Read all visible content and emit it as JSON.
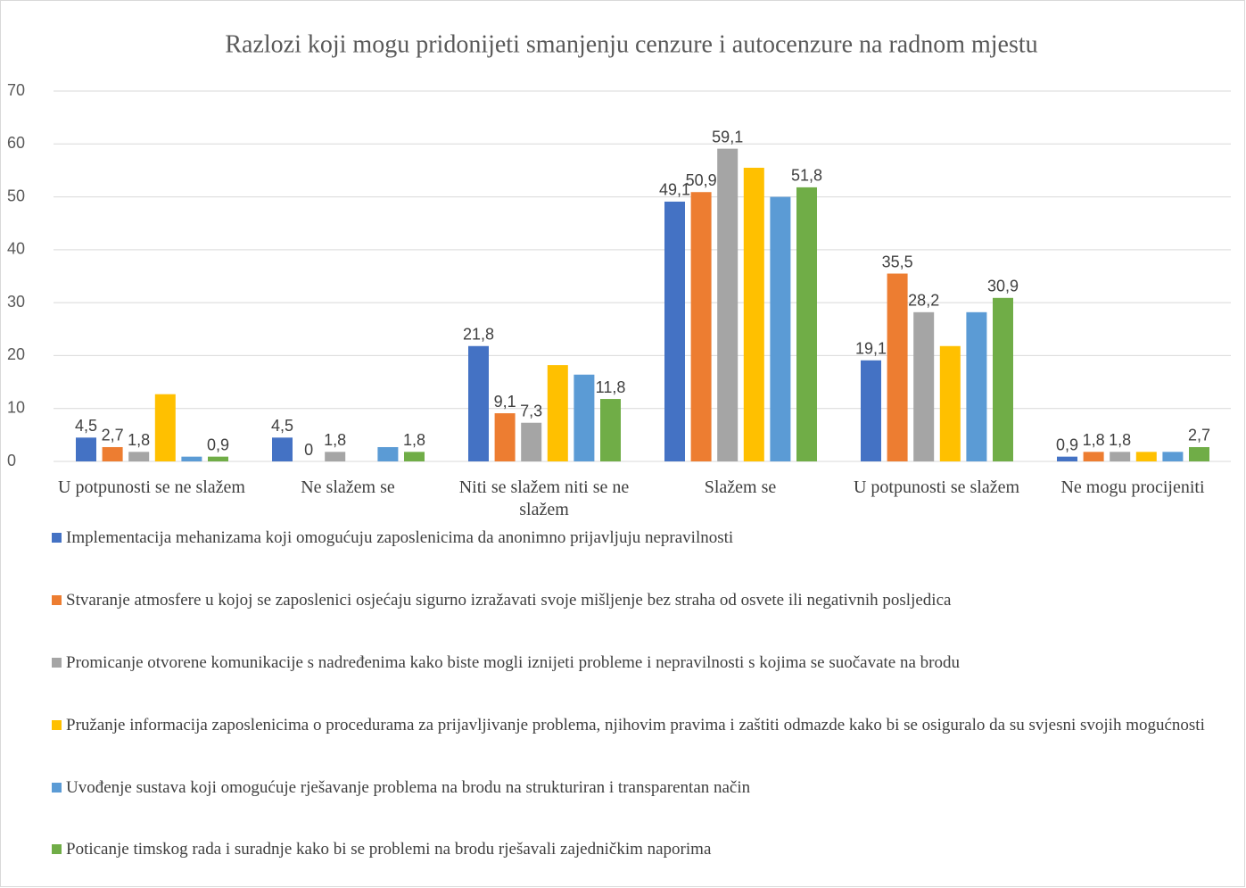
{
  "chart_data": {
    "type": "bar",
    "title": "Razlozi koji mogu pridonijeti smanjenju cenzure i autocenzure na radnom mjestu",
    "categories": [
      "U potpunosti se ne slažem",
      "Ne slažem se",
      "Niti se slažem niti se ne slažem",
      "Slažem se",
      "U potpunosti se slažem",
      "Ne mogu procijeniti"
    ],
    "series": [
      {
        "name": "Implementacija mehanizama koji omogućuju zaposlenicima da anonimno prijavljuju nepravilnosti",
        "color": "#4472c4",
        "values": [
          4.5,
          4.5,
          21.8,
          49.1,
          19.1,
          0.9
        ],
        "value_labels": [
          "4,5",
          "4,5",
          "21,8",
          "49,1",
          "19,1",
          "0,9"
        ]
      },
      {
        "name": "Stvaranje atmosfere u kojoj se zaposlenici osjećaju sigurno izražavati svoje mišljenje bez straha od osvete ili negativnih posljedica",
        "color": "#ed7d31",
        "values": [
          2.7,
          0,
          9.1,
          50.9,
          35.5,
          1.8
        ],
        "value_labels": [
          "2,7",
          "0",
          "9,1",
          "50,9",
          "35,5",
          "1,8"
        ]
      },
      {
        "name": "Promicanje otvorene komunikacije s nadređenima kako biste mogli iznijeti probleme i nepravilnosti s kojima se suočavate na brodu",
        "color": "#a5a5a5",
        "values": [
          1.8,
          1.8,
          7.3,
          59.1,
          28.2,
          1.8
        ],
        "value_labels": [
          "1,8",
          "1,8",
          "7,3",
          "59,1",
          "28,2",
          "1,8"
        ]
      },
      {
        "name": "Pružanje informacija zaposlenicima o procedurama za prijavljivanje problema, njihovim pravima i zaštiti odmazde kako bi se osiguralo da su svjesni svojih mogućnosti",
        "color": "#ffc000",
        "values": [
          12.7,
          0,
          18.2,
          55.5,
          21.8,
          1.8
        ]
      },
      {
        "name": "Uvođenje sustava koji omogućuje rješavanje problema na brodu na strukturiran i transparentan način",
        "color": "#5b9bd5",
        "values": [
          0.9,
          2.7,
          16.4,
          50.0,
          28.2,
          1.8
        ]
      },
      {
        "name": "Poticanje timskog rada i suradnje kako bi se problemi na brodu rješavali zajedničkim naporima",
        "color": "#70ad47",
        "values": [
          0.9,
          1.8,
          11.8,
          51.8,
          30.9,
          2.7
        ],
        "value_labels": [
          "0,9",
          "1,8",
          "11,8",
          "51,8",
          "30,9",
          "2,7"
        ]
      }
    ],
    "ylim": [
      0,
      70
    ],
    "yticks": [
      0,
      10,
      20,
      30,
      40,
      50,
      60,
      70
    ],
    "grid": true,
    "legend": "bottom"
  }
}
